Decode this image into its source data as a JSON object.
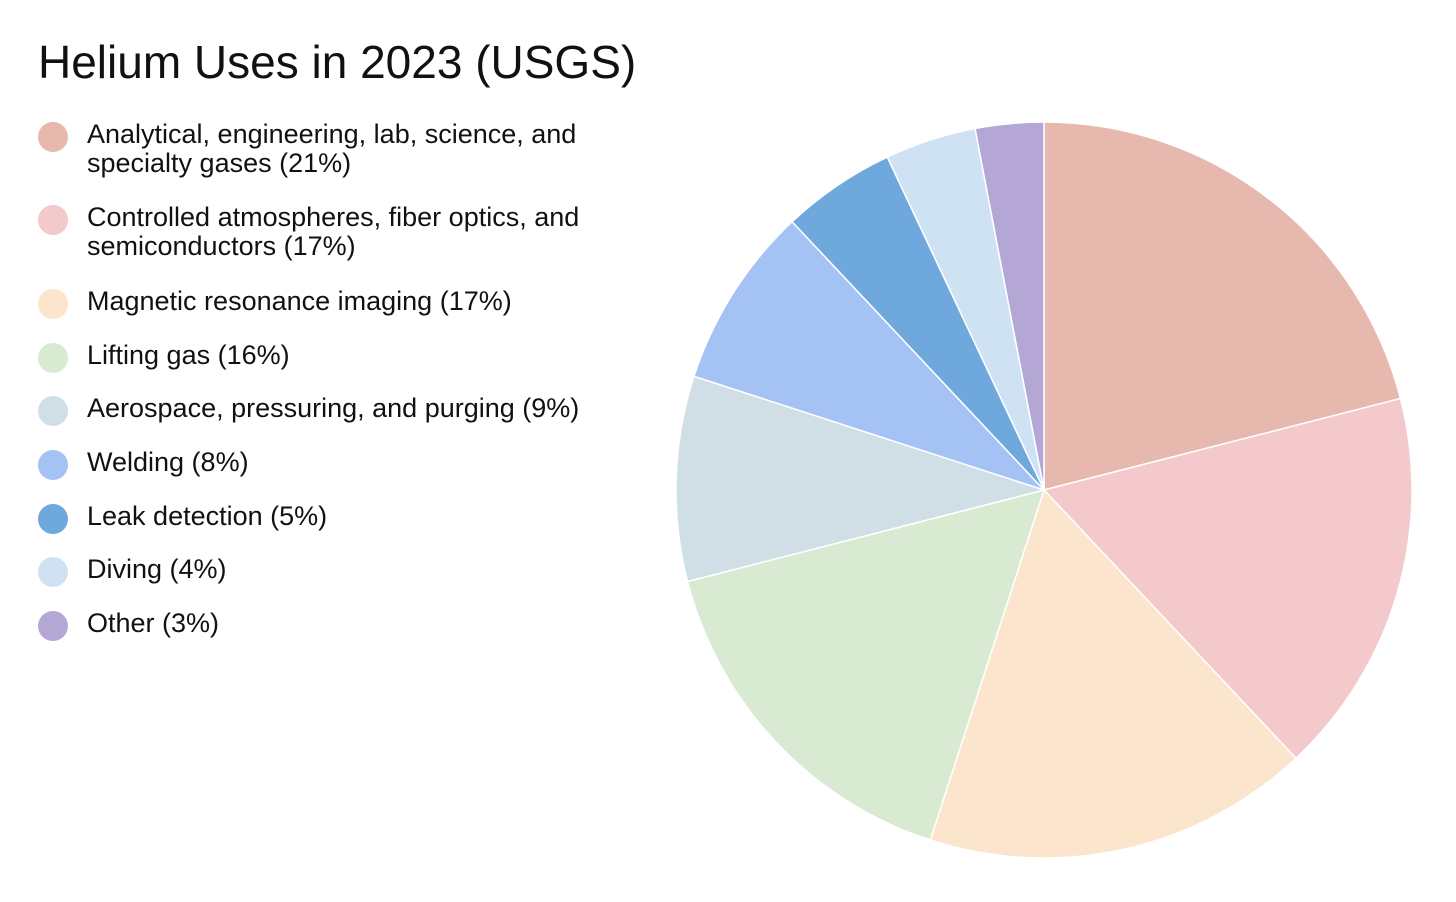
{
  "chart_data": {
    "type": "pie",
    "title": "Helium Uses in 2023 (USGS)",
    "legend_position": "left",
    "start_angle": "12 o'clock, clockwise",
    "slices": [
      {
        "label": "Analytical, engineering, lab, science, and specialty gases (21%)",
        "value": 21,
        "color": "#e6b8ae"
      },
      {
        "label": "Controlled atmospheres, fiber optics, and semiconductors (17%)",
        "value": 17,
        "color": "#f4c9cb"
      },
      {
        "label": "Magnetic resonance imaging (17%)",
        "value": 17,
        "color": "#fce5cd"
      },
      {
        "label": "Lifting gas (16%)",
        "value": 16,
        "color": "#d9ead3"
      },
      {
        "label": "Aerospace, pressuring, and purging (9%)",
        "value": 9,
        "color": "#d0dfe6"
      },
      {
        "label": "Welding (8%)",
        "value": 8,
        "color": "#a4c2f4"
      },
      {
        "label": "Leak detection (5%)",
        "value": 5,
        "color": "#6fa8dc"
      },
      {
        "label": "Diving (4%)",
        "value": 4,
        "color": "#cfe2f3"
      },
      {
        "label": "Other (3%)",
        "value": 3,
        "color": "#b4a7d6"
      }
    ]
  }
}
